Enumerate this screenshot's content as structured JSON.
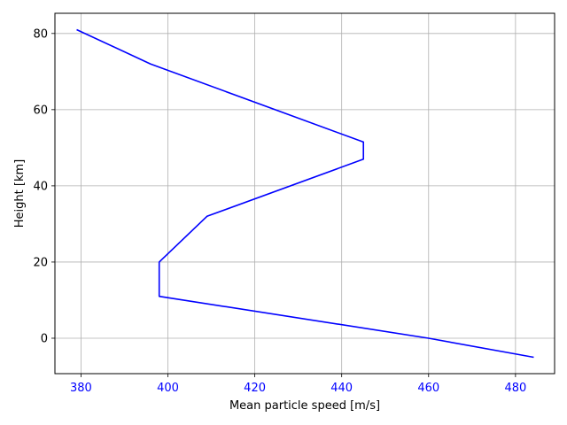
{
  "chart_data": {
    "type": "line",
    "title": "",
    "xlabel": "Mean particle speed [m/s]",
    "ylabel": "Height [km]",
    "xlim": [
      374,
      489
    ],
    "ylim": [
      -9.3,
      85.3
    ],
    "xticks": [
      380,
      400,
      420,
      440,
      460,
      480
    ],
    "yticks": [
      0,
      20,
      40,
      60,
      80
    ],
    "grid": true,
    "colors": {
      "line": "#0000ff",
      "xtick_labels": "#0000ff",
      "ytick_labels": "#000000",
      "grid": "#b0b0b0"
    },
    "series": [
      {
        "x": [
          484.2,
          460.0,
          398.0,
          398.0,
          409.0,
          445.0,
          445.0,
          396.0,
          379.0
        ],
        "y": [
          -5.0,
          0.0,
          11.0,
          20.0,
          32.0,
          47.0,
          51.5,
          72.0,
          81.0
        ]
      }
    ]
  }
}
